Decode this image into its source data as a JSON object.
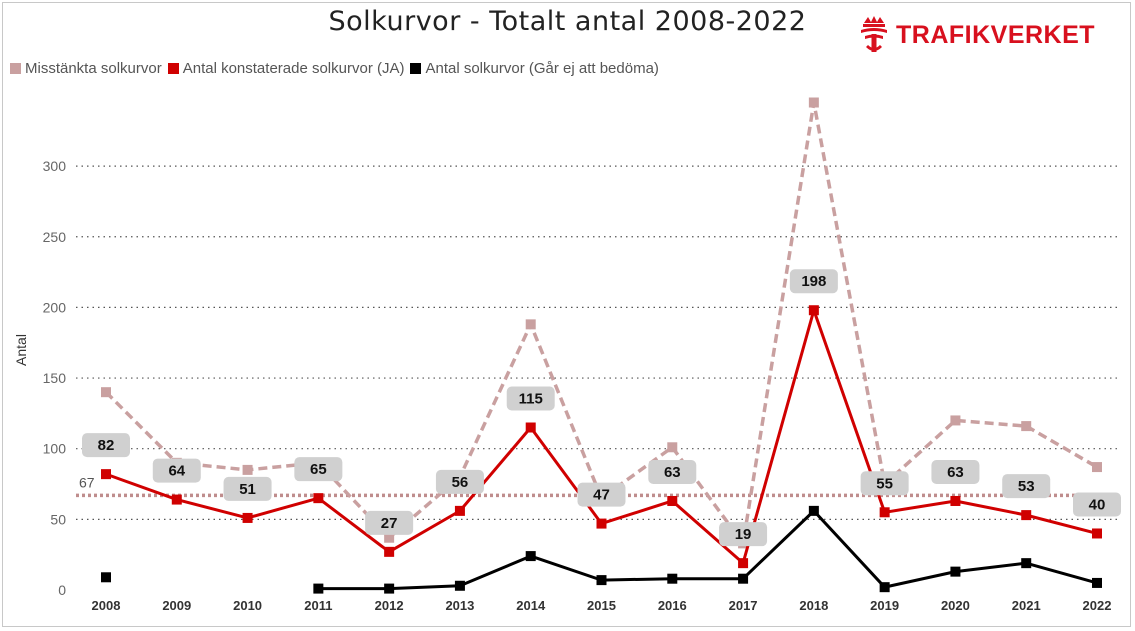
{
  "logo": {
    "text": "TRAFIKVERKET"
  },
  "chart_data": {
    "type": "line",
    "title": "Solkurvor - Totalt antal 2008-2022",
    "xlabel": "",
    "ylabel": "Antal",
    "ylim": [
      0,
      340
    ],
    "yticks": [
      0,
      50,
      100,
      150,
      200,
      250,
      300
    ],
    "grid": true,
    "legend_position": "top-left",
    "categories": [
      "2008",
      "2009",
      "2010",
      "2011",
      "2012",
      "2013",
      "2014",
      "2015",
      "2016",
      "2017",
      "2018",
      "2019",
      "2020",
      "2021",
      "2022"
    ],
    "series": [
      {
        "name": "Misstänkta solkurvor",
        "color": "#c9a0a0",
        "style": "dashed",
        "values": [
          140,
          90,
          85,
          90,
          37,
          80,
          188,
          65,
          101,
          33,
          345,
          75,
          120,
          116,
          87
        ]
      },
      {
        "name": "Antal konstaterade solkurvor (JA)",
        "color": "#d00000",
        "style": "solid",
        "labels": true,
        "values": [
          82,
          64,
          51,
          65,
          27,
          56,
          115,
          47,
          63,
          19,
          198,
          55,
          63,
          53,
          40
        ]
      },
      {
        "name": "Antal solkurvor (Går ej att bedöma)",
        "color": "#000000",
        "style": "solid",
        "values": [
          9,
          null,
          null,
          1,
          1,
          3,
          24,
          7,
          8,
          8,
          56,
          2,
          13,
          19,
          5
        ]
      }
    ],
    "reference_line": {
      "value": 67,
      "label": "67",
      "color": "#b57a7a",
      "style": "dotted"
    }
  }
}
